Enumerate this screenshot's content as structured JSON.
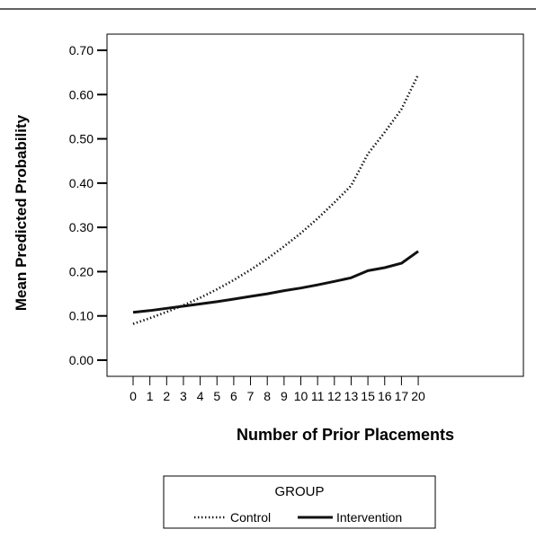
{
  "chart_data": {
    "type": "line",
    "title": "",
    "xlabel": "Number of Prior Placements",
    "ylabel": "Mean Predicted Probability",
    "x_categories": [
      "0",
      "1",
      "2",
      "3",
      "4",
      "5",
      "6",
      "7",
      "8",
      "9",
      "10",
      "11",
      "12",
      "13",
      "15",
      "16",
      "17",
      "20"
    ],
    "y_ticks": [
      "0.00",
      "0.10",
      "0.20",
      "0.30",
      "0.40",
      "0.50",
      "0.60",
      "0.70"
    ],
    "ylim": [
      0,
      0.7
    ],
    "grid": false,
    "legend": {
      "title": "GROUP",
      "position": "bottom"
    },
    "series": [
      {
        "name": "Control",
        "line_style": "dotted",
        "color": "#111111",
        "values": [
          0.082,
          0.095,
          0.109,
          0.124,
          0.141,
          0.16,
          0.181,
          0.204,
          0.229,
          0.257,
          0.287,
          0.32,
          0.356,
          0.394,
          0.466,
          0.515,
          0.567,
          0.645
        ]
      },
      {
        "name": "Intervention",
        "line_style": "solid",
        "color": "#111111",
        "values": [
          0.108,
          0.112,
          0.117,
          0.122,
          0.127,
          0.132,
          0.138,
          0.144,
          0.15,
          0.157,
          0.163,
          0.17,
          0.178,
          0.186,
          0.202,
          0.209,
          0.219,
          0.246
        ]
      }
    ]
  }
}
